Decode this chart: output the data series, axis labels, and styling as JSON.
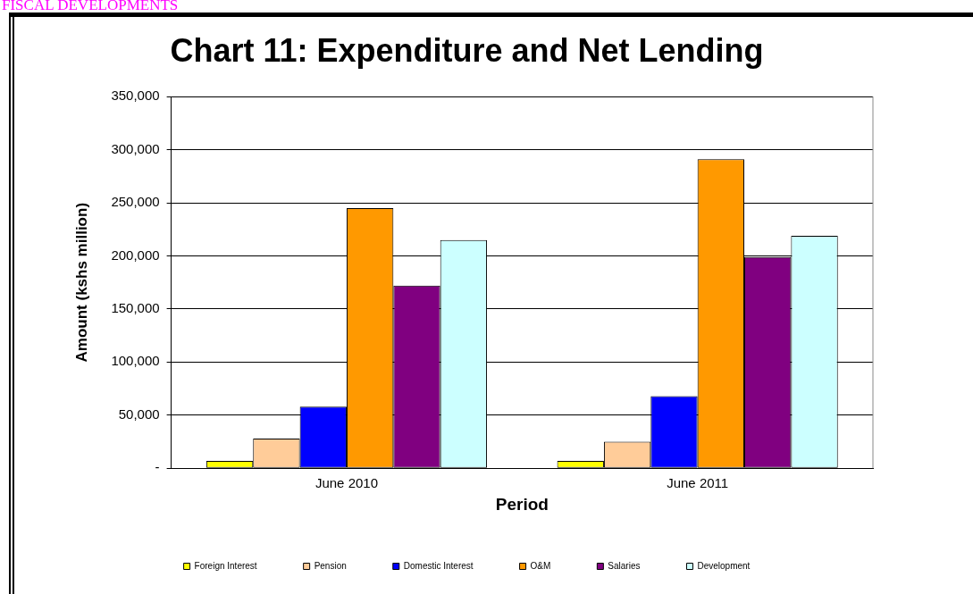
{
  "chart_data": {
    "type": "bar",
    "title": "Chart 11: Expenditure and Net Lending",
    "xlabel": "Period",
    "ylabel": "Amount (kshs million)",
    "annotations": [
      "FISCAL DEVELOPMENTS"
    ],
    "categories": [
      "June 2010",
      "June 2011"
    ],
    "series": [
      {
        "name": "Foreign Interest",
        "color": "#ffff00",
        "values": [
          7000,
          7000
        ]
      },
      {
        "name": "Pension",
        "color": "#ffcc99",
        "values": [
          28000,
          25000
        ]
      },
      {
        "name": "Domestic Interest",
        "color": "#0000ff",
        "values": [
          58000,
          68000
        ]
      },
      {
        "name": "O&M",
        "color": "#ff9900",
        "values": [
          245000,
          291000
        ]
      },
      {
        "name": "Salaries",
        "color": "#800080",
        "values": [
          172000,
          199000
        ]
      },
      {
        "name": "Development",
        "color": "#ccffff",
        "values": [
          215000,
          219000
        ]
      }
    ],
    "ylim": [
      0,
      350000
    ],
    "yticks": [
      {
        "value": 0,
        "label": "-"
      },
      {
        "value": 50000,
        "label": "50,000"
      },
      {
        "value": 100000,
        "label": "100,000"
      },
      {
        "value": 150000,
        "label": "150,000"
      },
      {
        "value": 200000,
        "label": "200,000"
      },
      {
        "value": 250000,
        "label": "250,000"
      },
      {
        "value": 300000,
        "label": "300,000"
      },
      {
        "value": 350000,
        "label": "350,000"
      }
    ],
    "grid": "y",
    "legend": "bottom"
  }
}
